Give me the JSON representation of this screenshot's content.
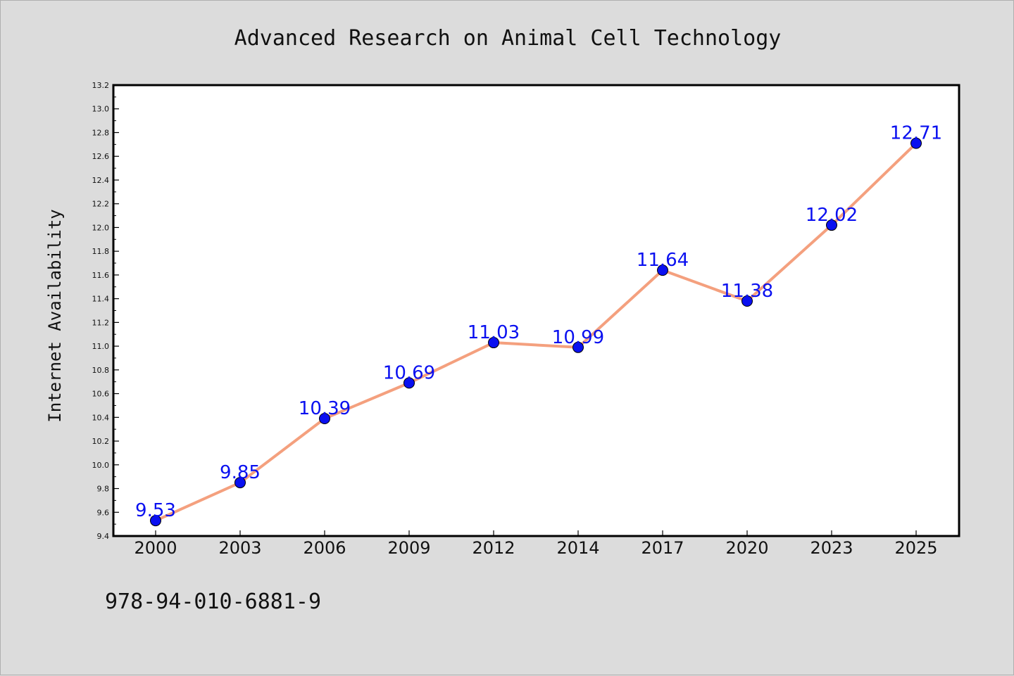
{
  "chart_data": {
    "type": "line",
    "title": "Advanced Research on Animal Cell Technology",
    "xlabel": "",
    "ylabel": "Internet Availability",
    "categories": [
      "2000",
      "2003",
      "2006",
      "2009",
      "2012",
      "2014",
      "2017",
      "2020",
      "2023",
      "2025"
    ],
    "series": [
      {
        "values": [
          9.53,
          9.85,
          10.39,
          10.69,
          11.03,
          10.99,
          11.64,
          11.38,
          12.02,
          12.71
        ],
        "data_labels": [
          "9.53",
          "9.85",
          "10.39",
          "10.69",
          "11.03",
          "10.99",
          "11.64",
          "11.38",
          "12.02",
          "12.71"
        ],
        "line_color": "#f4a07e",
        "marker_color": "#0a10f0"
      }
    ],
    "ylim": [
      9.4,
      13.2
    ],
    "yticks": [
      "9.4",
      "9.6",
      "9.8",
      "10.0",
      "10.2",
      "10.4",
      "10.6",
      "10.8",
      "11.0",
      "11.2",
      "11.4",
      "11.6",
      "11.8",
      "12.0",
      "12.2",
      "12.4",
      "12.6",
      "12.8",
      "13.0",
      "13.2"
    ],
    "grid": false,
    "legend": "none",
    "annotation": "978-94-010-6881-9"
  },
  "colors": {
    "background": "#dcdcdc",
    "plot_background": "#ffffff",
    "label_color": "#0a10f0"
  }
}
